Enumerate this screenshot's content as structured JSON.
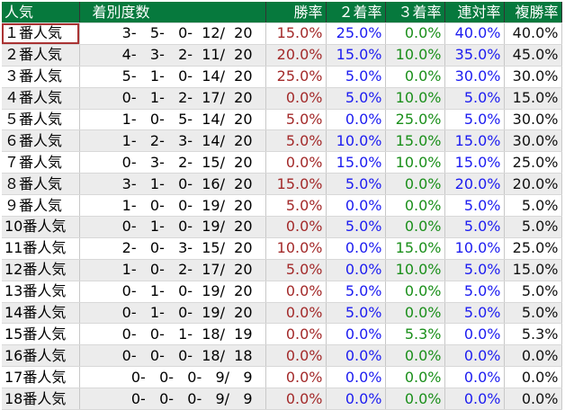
{
  "colors": {
    "header_bg": "#06793d",
    "win": "#a32a2a",
    "second": "#1c1cf0",
    "third": "#1a8f1a",
    "rentai": "#1c1cf0",
    "fukusho": "#111111"
  },
  "headers": [
    "人気",
    "着別度数",
    "勝率",
    "２着率",
    "３着率",
    "連対率",
    "複勝率"
  ],
  "rows": [
    [
      "１番人気",
      "3-   5-   0-  12/  20",
      "15.0%",
      "25.0%",
      "0.0%",
      "40.0%",
      "40.0%"
    ],
    [
      "２番人気",
      "4-   3-   2-  11/  20",
      "20.0%",
      "15.0%",
      "10.0%",
      "35.0%",
      "45.0%"
    ],
    [
      "３番人気",
      "5-   1-   0-  14/  20",
      "25.0%",
      "5.0%",
      "0.0%",
      "30.0%",
      "30.0%"
    ],
    [
      "４番人気",
      "0-   1-   2-  17/  20",
      "0.0%",
      "5.0%",
      "10.0%",
      "5.0%",
      "15.0%"
    ],
    [
      "５番人気",
      "1-   0-   5-  14/  20",
      "5.0%",
      "0.0%",
      "25.0%",
      "5.0%",
      "30.0%"
    ],
    [
      "６番人気",
      "1-   2-   3-  14/  20",
      "5.0%",
      "10.0%",
      "15.0%",
      "15.0%",
      "30.0%"
    ],
    [
      "７番人気",
      "0-   3-   2-  15/  20",
      "0.0%",
      "15.0%",
      "10.0%",
      "15.0%",
      "25.0%"
    ],
    [
      "８番人気",
      "3-   1-   0-  16/  20",
      "15.0%",
      "5.0%",
      "0.0%",
      "20.0%",
      "20.0%"
    ],
    [
      "９番人気",
      "1-   0-   0-  19/  20",
      "5.0%",
      "0.0%",
      "0.0%",
      "5.0%",
      "5.0%"
    ],
    [
      "10番人気",
      "0-   1-   0-  19/  20",
      "0.0%",
      "5.0%",
      "0.0%",
      "5.0%",
      "5.0%"
    ],
    [
      "11番人気",
      "2-   0-   3-  15/  20",
      "10.0%",
      "0.0%",
      "15.0%",
      "10.0%",
      "25.0%"
    ],
    [
      "12番人気",
      "1-   0-   2-  17/  20",
      "5.0%",
      "0.0%",
      "10.0%",
      "5.0%",
      "15.0%"
    ],
    [
      "13番人気",
      "0-   1-   0-  19/  20",
      "0.0%",
      "5.0%",
      "0.0%",
      "5.0%",
      "5.0%"
    ],
    [
      "14番人気",
      "0-   1-   0-  19/  20",
      "0.0%",
      "5.0%",
      "0.0%",
      "5.0%",
      "5.0%"
    ],
    [
      "15番人気",
      "0-   0-   1-  18/  19",
      "0.0%",
      "0.0%",
      "5.3%",
      "0.0%",
      "5.3%"
    ],
    [
      "16番人気",
      "0-   0-   0-  18/  18",
      "0.0%",
      "0.0%",
      "0.0%",
      "0.0%",
      "0.0%"
    ],
    [
      "17番人気",
      "0-   0-   0-   9/   9",
      "0.0%",
      "0.0%",
      "0.0%",
      "0.0%",
      "0.0%"
    ],
    [
      "18番人気",
      "0-   0-   0-   9/   9",
      "0.0%",
      "0.0%",
      "0.0%",
      "0.0%",
      "0.0%"
    ]
  ]
}
